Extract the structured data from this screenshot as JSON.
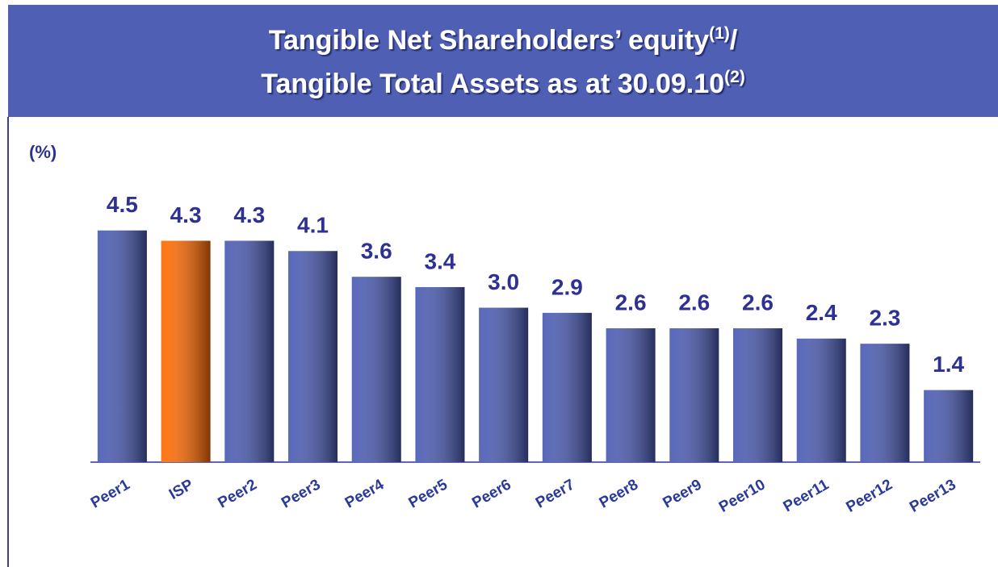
{
  "chart_data": {
    "type": "bar",
    "title_lines": [
      {
        "text": "Tangible Net Shareholders’ equity",
        "note": "(1)",
        "suffix": "/"
      },
      {
        "text": "Tangible Total Assets as at 30.09.10",
        "note": "(2)"
      }
    ],
    "ylabel": "(%)",
    "categories": [
      "Peer1",
      "ISP",
      "Peer2",
      "Peer3",
      "Peer4",
      "Peer5",
      "Peer6",
      "Peer7",
      "Peer8",
      "Peer9",
      "Peer10",
      "Peer11",
      "Peer12",
      "Peer13"
    ],
    "values": [
      4.5,
      4.3,
      4.3,
      4.1,
      3.6,
      3.4,
      3.0,
      2.9,
      2.6,
      2.6,
      2.6,
      2.4,
      2.3,
      1.4
    ],
    "value_labels": [
      "4.5",
      "4.3",
      "4.3",
      "4.1",
      "3.6",
      "3.4",
      "3.0",
      "2.9",
      "2.6",
      "2.6",
      "2.6",
      "2.4",
      "2.3",
      "1.4"
    ],
    "colors": [
      "#4a5bb4",
      "#ff6a00",
      "#4a5bb4",
      "#4a5bb4",
      "#4a5bb4",
      "#4a5bb4",
      "#4a5bb4",
      "#4a5bb4",
      "#4a5bb4",
      "#4a5bb4",
      "#4a5bb4",
      "#4a5bb4",
      "#4a5bb4",
      "#4a5bb4"
    ],
    "ylim": [
      0,
      6
    ]
  }
}
